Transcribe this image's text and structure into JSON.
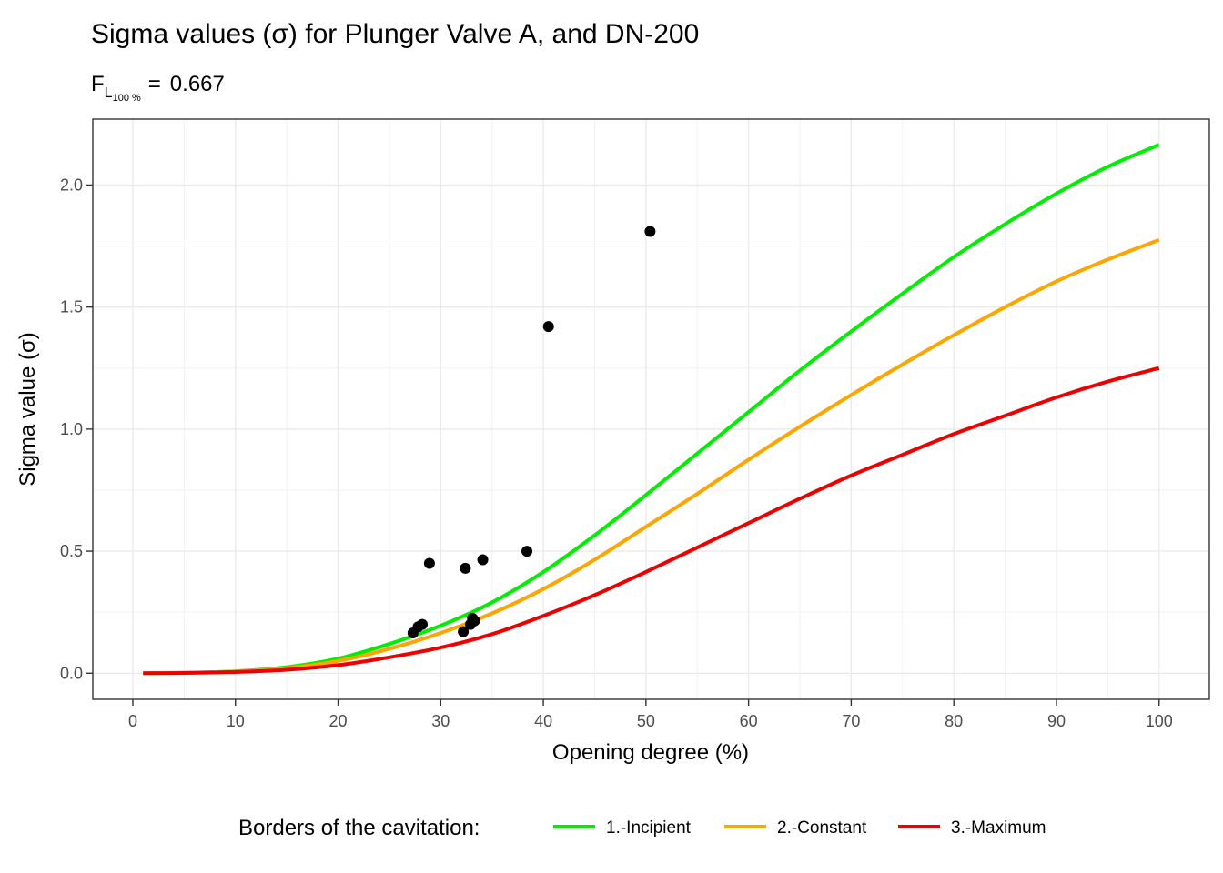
{
  "chart_data": {
    "type": "line",
    "title": "Sigma values (σ) for Plunger Valve A, and DN-200",
    "subtitle": {
      "label": "F",
      "subscript": "L",
      "subsubscript": "100 %",
      "equals": "=",
      "value": "0.667"
    },
    "xlabel": "Opening degree (%)",
    "ylabel": "Sigma value (σ)",
    "xlim": [
      -3.9,
      104.9
    ],
    "ylim": [
      -0.107,
      2.27
    ],
    "xticks": [
      0,
      10,
      20,
      30,
      40,
      50,
      60,
      70,
      80,
      90,
      100
    ],
    "yticks": [
      0.0,
      0.5,
      1.0,
      1.5,
      2.0
    ],
    "ytick_labels": [
      "0.0",
      "0.5",
      "1.0",
      "1.5",
      "2.0"
    ],
    "grid": true,
    "legend": {
      "title": "Borders of the cavitation:",
      "position": "bottom"
    },
    "series": [
      {
        "name": "1.-Incipient",
        "color": "#00ee00",
        "x": [
          1,
          5,
          10,
          15,
          20,
          25,
          30,
          35,
          40,
          45,
          50,
          55,
          60,
          65,
          70,
          75,
          80,
          85,
          90,
          95,
          100
        ],
        "y": [
          0.0,
          0.002,
          0.008,
          0.025,
          0.06,
          0.12,
          0.195,
          0.29,
          0.415,
          0.565,
          0.73,
          0.9,
          1.07,
          1.24,
          1.4,
          1.555,
          1.705,
          1.84,
          1.965,
          2.075,
          2.165
        ]
      },
      {
        "name": "2.-Constant",
        "color": "#ffa500",
        "x": [
          1,
          5,
          10,
          15,
          20,
          25,
          30,
          35,
          40,
          45,
          50,
          55,
          60,
          65,
          70,
          75,
          80,
          85,
          90,
          95,
          100
        ],
        "y": [
          0.0,
          0.002,
          0.007,
          0.021,
          0.05,
          0.1,
          0.165,
          0.245,
          0.345,
          0.465,
          0.6,
          0.735,
          0.875,
          1.01,
          1.14,
          1.265,
          1.385,
          1.5,
          1.605,
          1.695,
          1.775
        ]
      },
      {
        "name": "3.-Maximum",
        "color": "#ee0000",
        "x": [
          1,
          5,
          10,
          15,
          20,
          25,
          30,
          35,
          40,
          45,
          50,
          55,
          60,
          65,
          70,
          75,
          80,
          85,
          90,
          95,
          100
        ],
        "y": [
          0.0,
          0.001,
          0.005,
          0.014,
          0.033,
          0.065,
          0.105,
          0.16,
          0.235,
          0.32,
          0.415,
          0.515,
          0.615,
          0.715,
          0.81,
          0.895,
          0.98,
          1.055,
          1.13,
          1.195,
          1.25
        ]
      }
    ],
    "points": {
      "color": "#000000",
      "x": [
        27.3,
        27.8,
        28.2,
        28.9,
        32.2,
        32.4,
        32.9,
        33.1,
        33.3,
        34.1,
        38.4,
        40.5,
        50.4
      ],
      "y": [
        0.165,
        0.19,
        0.2,
        0.45,
        0.17,
        0.43,
        0.2,
        0.225,
        0.215,
        0.465,
        0.5,
        1.42,
        1.81
      ]
    }
  }
}
